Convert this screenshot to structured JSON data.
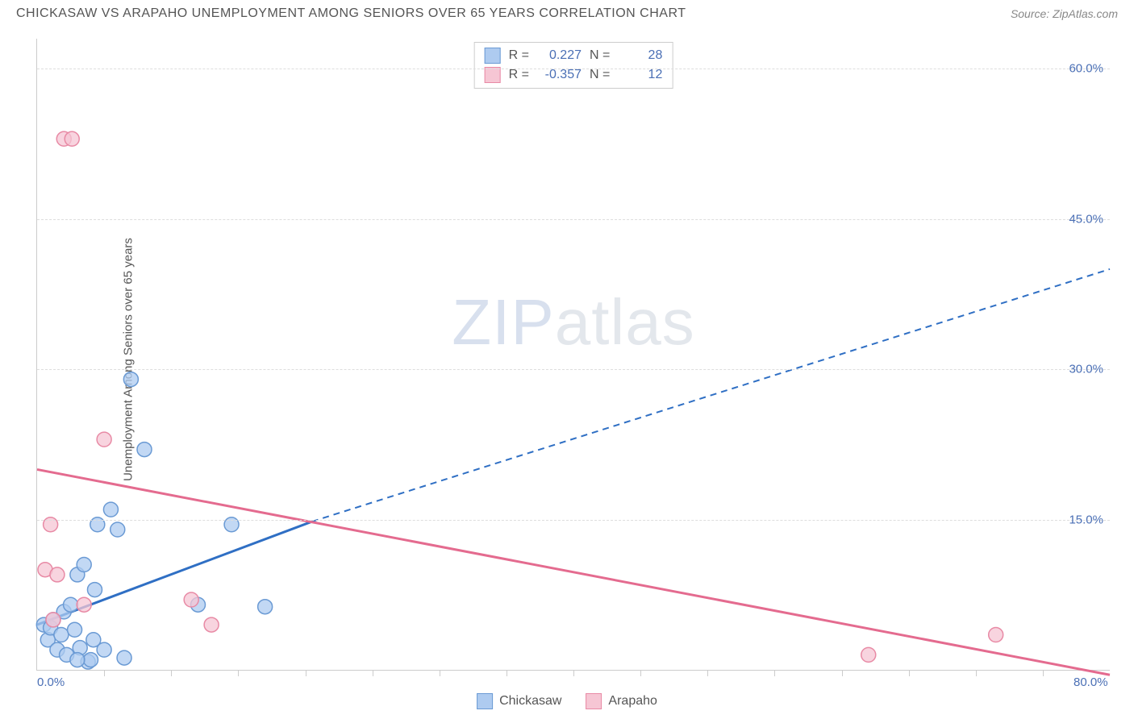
{
  "header": {
    "title": "CHICKASAW VS ARAPAHO UNEMPLOYMENT AMONG SENIORS OVER 65 YEARS CORRELATION CHART",
    "source": "Source: ZipAtlas.com"
  },
  "chart": {
    "type": "scatter",
    "ylabel": "Unemployment Among Seniors over 65 years",
    "xlim": [
      0,
      80
    ],
    "ylim": [
      0,
      63
    ],
    "background_color": "#ffffff",
    "grid_color": "#dddddd",
    "axis_color": "#cccccc",
    "label_color": "#4a6fb5",
    "text_color": "#555555",
    "y_ticks": [
      {
        "v": 15.0,
        "label": "15.0%"
      },
      {
        "v": 30.0,
        "label": "30.0%"
      },
      {
        "v": 45.0,
        "label": "45.0%"
      },
      {
        "v": 60.0,
        "label": "60.0%"
      }
    ],
    "x_ticks_minor": [
      5,
      10,
      15,
      20,
      25,
      30,
      35,
      40,
      45,
      50,
      55,
      60,
      65,
      70,
      75
    ],
    "x_labels": [
      {
        "v": 0,
        "label": "0.0%"
      },
      {
        "v": 80,
        "label": "80.0%"
      }
    ],
    "series": [
      {
        "name": "Chickasaw",
        "color_fill": "#aecbf0",
        "color_stroke": "#6a9ad4",
        "line_color": "#2f6fc4",
        "R": "0.227",
        "N": "28",
        "points": [
          [
            0.5,
            4.5
          ],
          [
            0.8,
            3.0
          ],
          [
            1.0,
            4.2
          ],
          [
            1.2,
            5.0
          ],
          [
            1.5,
            2.0
          ],
          [
            1.8,
            3.5
          ],
          [
            2.0,
            5.8
          ],
          [
            2.2,
            1.5
          ],
          [
            2.5,
            6.5
          ],
          [
            2.8,
            4.0
          ],
          [
            3.0,
            9.5
          ],
          [
            3.2,
            2.2
          ],
          [
            3.5,
            10.5
          ],
          [
            3.8,
            0.8
          ],
          [
            4.0,
            1.0
          ],
          [
            4.3,
            8.0
          ],
          [
            4.5,
            14.5
          ],
          [
            5.0,
            2.0
          ],
          [
            5.5,
            16.0
          ],
          [
            6.0,
            14.0
          ],
          [
            6.5,
            1.2
          ],
          [
            7.0,
            29.0
          ],
          [
            8.0,
            22.0
          ],
          [
            12.0,
            6.5
          ],
          [
            14.5,
            14.5
          ],
          [
            17.0,
            6.3
          ],
          [
            3.0,
            1.0
          ],
          [
            4.2,
            3.0
          ]
        ],
        "trend": {
          "x1": 0,
          "y1": 4.5,
          "x2": 20.5,
          "y2": 14.8,
          "dash_from_x": 20.5,
          "x3": 80,
          "y3": 40.0
        }
      },
      {
        "name": "Arapaho",
        "color_fill": "#f6c6d4",
        "color_stroke": "#e88aa5",
        "line_color": "#e46b8f",
        "R": "-0.357",
        "N": "12",
        "points": [
          [
            0.6,
            10.0
          ],
          [
            1.0,
            14.5
          ],
          [
            1.5,
            9.5
          ],
          [
            2.0,
            53.0
          ],
          [
            2.6,
            53.0
          ],
          [
            3.5,
            6.5
          ],
          [
            5.0,
            23.0
          ],
          [
            11.5,
            7.0
          ],
          [
            13.0,
            4.5
          ],
          [
            62.0,
            1.5
          ],
          [
            71.5,
            3.5
          ],
          [
            1.2,
            5.0
          ]
        ],
        "trend": {
          "x1": 0,
          "y1": 20.0,
          "x2": 80,
          "y2": -0.5
        }
      }
    ],
    "marker_radius": 9,
    "marker_opacity": 0.75,
    "watermark": {
      "bold": "ZIP",
      "light": "atlas"
    }
  },
  "stats_box": {
    "rows": [
      {
        "swatch_fill": "#aecbf0",
        "swatch_stroke": "#6a9ad4",
        "R_label": "R =",
        "R_val": "0.227",
        "N_label": "N =",
        "N_val": "28",
        "val_color": "#4a6fb5"
      },
      {
        "swatch_fill": "#f6c6d4",
        "swatch_stroke": "#e88aa5",
        "R_label": "R =",
        "R_val": "-0.357",
        "N_label": "N =",
        "N_val": "12",
        "val_color": "#4a6fb5"
      }
    ]
  },
  "legend": {
    "items": [
      {
        "swatch_fill": "#aecbf0",
        "swatch_stroke": "#6a9ad4",
        "label": "Chickasaw"
      },
      {
        "swatch_fill": "#f6c6d4",
        "swatch_stroke": "#e88aa5",
        "label": "Arapaho"
      }
    ]
  }
}
